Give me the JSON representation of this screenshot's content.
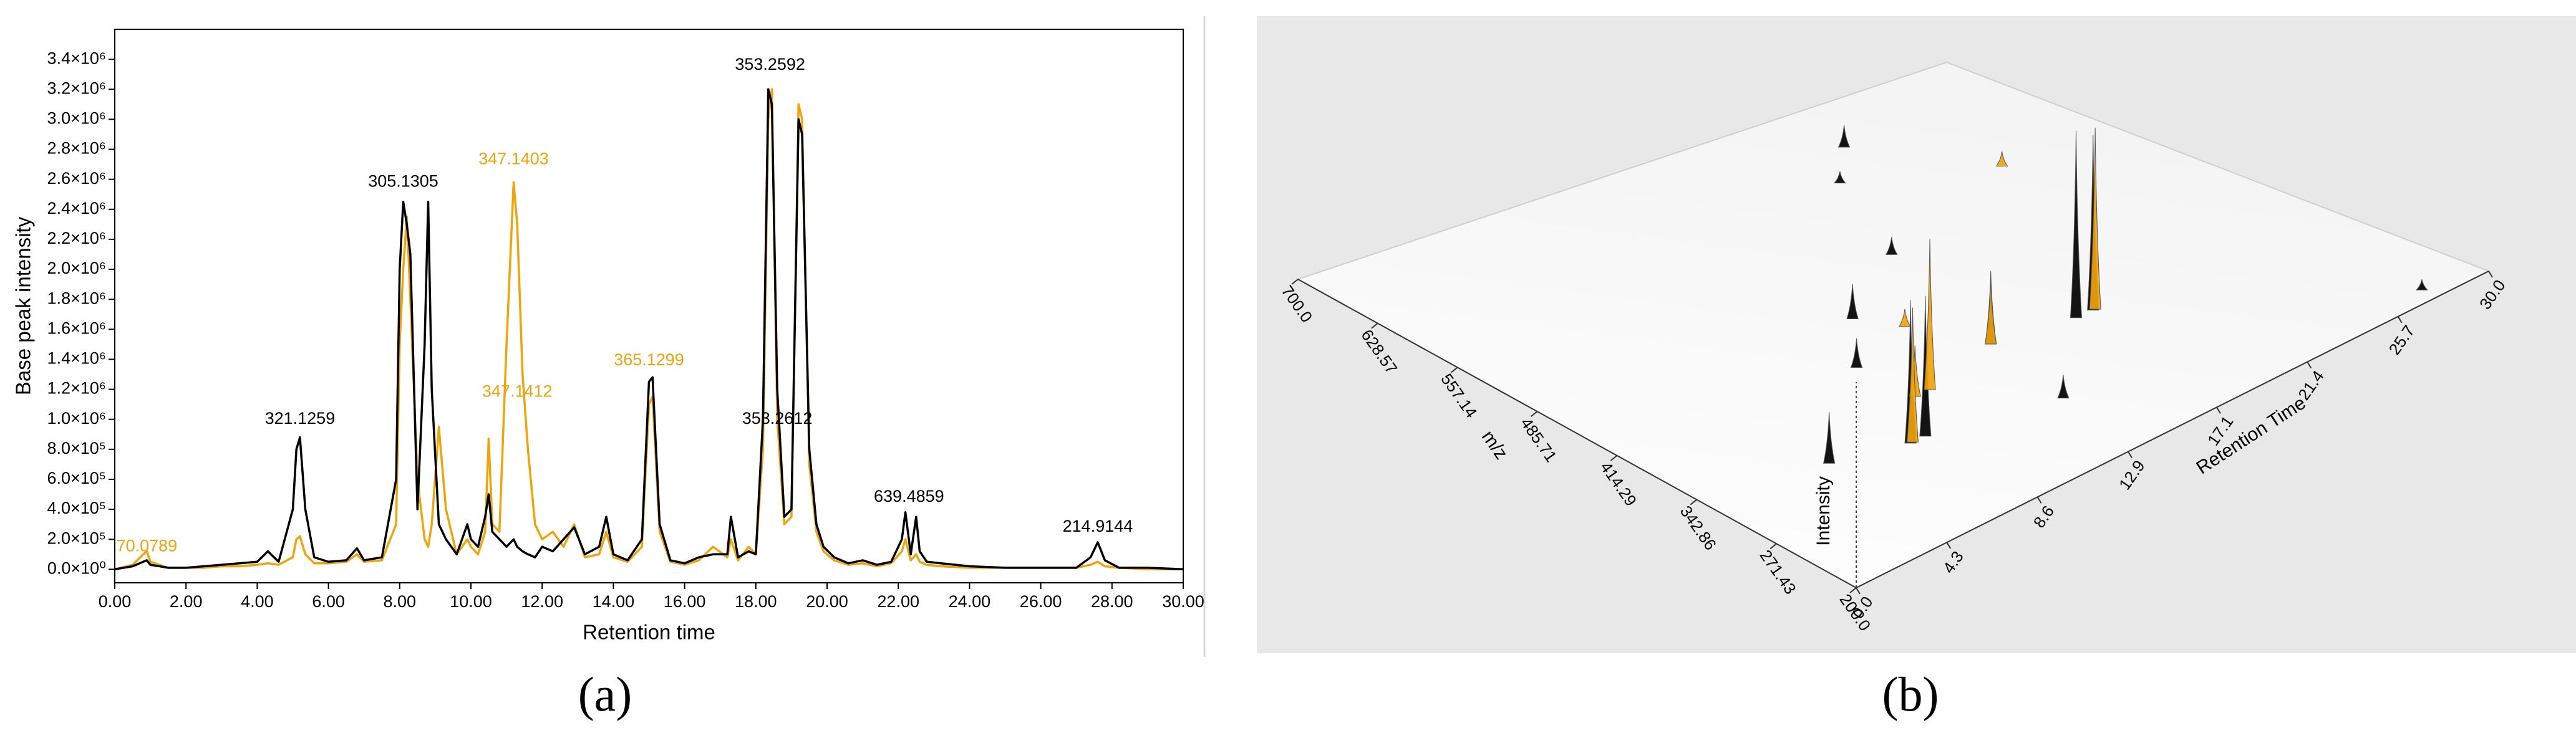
{
  "chart_data": [
    {
      "type": "line",
      "xlabel": "Retention time",
      "ylabel": "Base peak intensity",
      "xlim": [
        0,
        30
      ],
      "ylim": [
        -90000,
        3600000
      ],
      "xticks": [
        {
          "value": 0,
          "label": "0.00"
        },
        {
          "value": 2,
          "label": "2.00"
        },
        {
          "value": 4,
          "label": "4.00"
        },
        {
          "value": 6,
          "label": "6.00"
        },
        {
          "value": 8,
          "label": "8.00"
        },
        {
          "value": 10,
          "label": "10.00"
        },
        {
          "value": 12,
          "label": "12.00"
        },
        {
          "value": 14,
          "label": "14.00"
        },
        {
          "value": 16,
          "label": "16.00"
        },
        {
          "value": 18,
          "label": "18.00"
        },
        {
          "value": 20,
          "label": "20.00"
        },
        {
          "value": 22,
          "label": "22.00"
        },
        {
          "value": 24,
          "label": "24.00"
        },
        {
          "value": 26,
          "label": "26.00"
        },
        {
          "value": 28,
          "label": "28.00"
        },
        {
          "value": 30,
          "label": "30.00"
        }
      ],
      "yticks": [
        {
          "value": 0,
          "label": "0.0×10⁰"
        },
        {
          "value": 200000,
          "label": "2.0×10⁵"
        },
        {
          "value": 400000,
          "label": "4.0×10⁵"
        },
        {
          "value": 600000,
          "label": "6.0×10⁵"
        },
        {
          "value": 800000,
          "label": "8.0×10⁵"
        },
        {
          "value": 1000000,
          "label": "1.0×10⁶"
        },
        {
          "value": 1200000,
          "label": "1.2×10⁶"
        },
        {
          "value": 1400000,
          "label": "1.4×10⁶"
        },
        {
          "value": 1600000,
          "label": "1.6×10⁶"
        },
        {
          "value": 1800000,
          "label": "1.8×10⁶"
        },
        {
          "value": 2000000,
          "label": "2.0×10⁶"
        },
        {
          "value": 2200000,
          "label": "2.2×10⁶"
        },
        {
          "value": 2400000,
          "label": "2.4×10⁶"
        },
        {
          "value": 2600000,
          "label": "2.6×10⁶"
        },
        {
          "value": 2800000,
          "label": "2.8×10⁶"
        },
        {
          "value": 3000000,
          "label": "3.0×10⁶"
        },
        {
          "value": 3200000,
          "label": "3.2×10⁶"
        },
        {
          "value": 3400000,
          "label": "3.4×10⁶"
        }
      ],
      "x": [
        0,
        0.5,
        0.8,
        0.9,
        1,
        1.5,
        2,
        2.5,
        3,
        3.5,
        4,
        4.3,
        4.6,
        5,
        5.1,
        5.2,
        5.35,
        5.6,
        6,
        6.5,
        6.8,
        7,
        7.5,
        7.9,
        8,
        8.1,
        8.2,
        8.3,
        8.5,
        8.7,
        8.8,
        8.9,
        9.1,
        9.3,
        9.6,
        9.9,
        10,
        10.2,
        10.4,
        10.5,
        10.6,
        10.8,
        11,
        11.2,
        11.3,
        11.45,
        11.6,
        11.8,
        12,
        12.3,
        12.6,
        12.9,
        13.2,
        13.6,
        13.8,
        14,
        14.4,
        14.8,
        15,
        15.1,
        15.3,
        15.6,
        16,
        16.4,
        16.8,
        17.2,
        17.3,
        17.5,
        17.8,
        18,
        18.2,
        18.35,
        18.45,
        18.6,
        18.8,
        19,
        19.2,
        19.3,
        19.5,
        19.7,
        19.9,
        20.2,
        20.6,
        21,
        21.4,
        21.8,
        22.1,
        22.2,
        22.35,
        22.5,
        22.6,
        22.8,
        23.2,
        24,
        25,
        26,
        27,
        27.4,
        27.6,
        27.8,
        28.2,
        29,
        30
      ],
      "series": [
        {
          "color": "#f0a30a",
          "values": [
            0,
            30000,
            100000,
            120000,
            50000,
            10000,
            10000,
            10000,
            20000,
            20000,
            30000,
            40000,
            30000,
            80000,
            200000,
            220000,
            100000,
            40000,
            40000,
            50000,
            100000,
            50000,
            60000,
            300000,
            1500000,
            2000000,
            2350000,
            1800000,
            600000,
            200000,
            150000,
            300000,
            950000,
            400000,
            100000,
            200000,
            150000,
            100000,
            250000,
            870000,
            300000,
            250000,
            1500000,
            2580000,
            2300000,
            1300000,
            800000,
            300000,
            200000,
            250000,
            150000,
            300000,
            80000,
            100000,
            250000,
            80000,
            50000,
            150000,
            1100000,
            1150000,
            250000,
            50000,
            30000,
            60000,
            150000,
            80000,
            200000,
            60000,
            150000,
            100000,
            800000,
            3000000,
            3200000,
            1000000,
            300000,
            350000,
            3100000,
            3000000,
            700000,
            250000,
            120000,
            60000,
            30000,
            40000,
            20000,
            40000,
            120000,
            200000,
            60000,
            100000,
            50000,
            30000,
            20000,
            10000,
            10000,
            10000,
            10000,
            30000,
            50000,
            20000,
            10000,
            0,
            0
          ]
        },
        {
          "color": "#000000",
          "values": [
            0,
            20000,
            50000,
            60000,
            30000,
            10000,
            10000,
            20000,
            30000,
            40000,
            50000,
            120000,
            50000,
            400000,
            800000,
            880000,
            400000,
            80000,
            50000,
            60000,
            140000,
            60000,
            80000,
            600000,
            2000000,
            2450000,
            2300000,
            2100000,
            400000,
            1500000,
            2450000,
            1200000,
            300000,
            200000,
            100000,
            300000,
            200000,
            150000,
            350000,
            500000,
            250000,
            200000,
            150000,
            200000,
            150000,
            120000,
            100000,
            80000,
            150000,
            120000,
            200000,
            280000,
            100000,
            150000,
            350000,
            100000,
            60000,
            200000,
            1250000,
            1280000,
            300000,
            60000,
            40000,
            80000,
            100000,
            100000,
            350000,
            80000,
            120000,
            100000,
            1000000,
            3200000,
            3100000,
            1200000,
            350000,
            400000,
            3000000,
            2900000,
            800000,
            300000,
            150000,
            80000,
            40000,
            60000,
            30000,
            50000,
            200000,
            380000,
            100000,
            350000,
            120000,
            50000,
            40000,
            20000,
            10000,
            10000,
            10000,
            80000,
            180000,
            60000,
            10000,
            10000,
            0
          ]
        }
      ],
      "annotations": [
        {
          "text": "70.0789",
          "x": 0.9,
          "y": 150000,
          "color": "#f0a30a"
        },
        {
          "text": "321.1259",
          "x": 5.2,
          "y": 1000000,
          "color": "#000000"
        },
        {
          "text": "305.1305",
          "x": 8.1,
          "y": 2580000,
          "color": "#000000"
        },
        {
          "text": "347.1403",
          "x": 11.2,
          "y": 2730000,
          "color": "#f0a30a"
        },
        {
          "text": "347.1412",
          "x": 11.3,
          "y": 1180000,
          "color": "#f0a30a"
        },
        {
          "text": "365.1299",
          "x": 15.0,
          "y": 1390000,
          "color": "#f0a30a"
        },
        {
          "text": "353.2592",
          "x": 18.4,
          "y": 3360000,
          "color": "#000000"
        },
        {
          "text": "353.2612",
          "x": 18.6,
          "y": 1000000,
          "color": "#000000"
        },
        {
          "text": "639.4859",
          "x": 22.3,
          "y": 480000,
          "color": "#000000"
        },
        {
          "text": "214.9144",
          "x": 27.6,
          "y": 280000,
          "color": "#000000"
        }
      ],
      "panel_label": "(a)"
    },
    {
      "type": "peaks3d",
      "xlabel": "Retention Time",
      "ylabel": "m/z",
      "zlabel": "Intensity",
      "xlim": [
        0,
        30
      ],
      "ylim": [
        200,
        700
      ],
      "xticks": [
        {
          "value": 0,
          "label": "0.0"
        },
        4.3,
        8.6,
        12.9,
        17.1,
        21.4,
        25.7,
        {
          "value": 30,
          "label": "30.0"
        }
      ],
      "yticks": [
        {
          "value": 700,
          "label": "700.0"
        },
        628.57,
        557.14,
        485.71,
        414.29,
        342.86,
        271.43,
        {
          "value": 200,
          "label": "200.0"
        }
      ],
      "series": [
        {
          "color": "#000000",
          "x": [
            18.4,
            19.2,
            8.1,
            8.8,
            5.1,
            15.0,
            22.2,
            27.6,
            10.5,
            12.9,
            17.3,
            14.0,
            20.0
          ],
          "mz": [
            353.26,
            353.26,
            305.13,
            305.13,
            321.13,
            365.13,
            639.49,
            214.91,
            400,
            450,
            500,
            280,
            600
          ],
          "values": [
            3200000,
            3000000,
            2450000,
            2400000,
            880000,
            1250000,
            380000,
            180000,
            500000,
            600000,
            300000,
            400000,
            200000
          ]
        },
        {
          "color": "#f0a30a",
          "x": [
            11.2,
            10.5,
            8.2,
            15.0,
            19.3,
            13.8,
            25.0
          ],
          "mz": [
            347.14,
            347.14,
            305.13,
            365.13,
            353.26,
            420,
            550
          ],
          "values": [
            2580000,
            870000,
            2300000,
            1100000,
            3100000,
            300000,
            250000
          ]
        }
      ],
      "panel_label": "(b)"
    }
  ]
}
